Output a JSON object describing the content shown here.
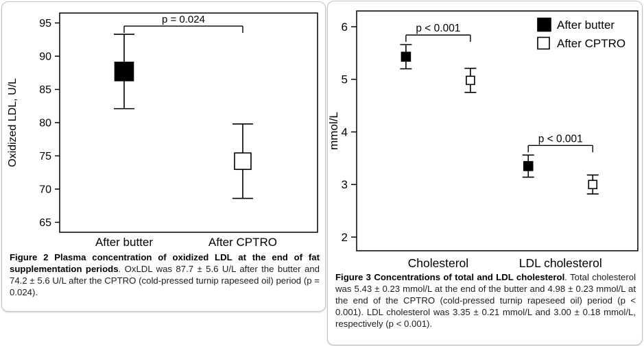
{
  "page": {
    "background": "#ffffff",
    "panel_border_color": "#c4c4c4",
    "ink_color": "#000000"
  },
  "figure2": {
    "caption_bold": "Figure 2 Plasma concentration of oxidized LDL at the end of fat supplementation periods",
    "caption_rest": ". OxLDL was 87.7 ± 5.6 U/L after the butter and 74.2 ± 5.6 U/L after the CPTRO (cold-pressed turnip rapeseed oil) period (p = 0.024)."
  },
  "figure3": {
    "caption_bold": "Figure 3 Concentrations of total and LDL cholesterol",
    "caption_rest": ". Total cholesterol was 5.43 ± 0.23 mmol/L at the end of the butter and 4.98 ± 0.23 mmol/L at the end of the CPTRO (cold-pressed turnip rapeseed oil) period (p < 0.001). LDL cholesterol was 3.35 ± 0.21 mmol/L and 3.00 ± 0.18 mmol/L, respectively (p < 0.001)."
  },
  "chart_data": [
    {
      "id": "figure2",
      "type": "scatter",
      "title": "",
      "xlabel": "",
      "ylabel": "Oxidized LDL, U/L",
      "ylim": [
        63.5,
        96.5
      ],
      "yticks": [
        65,
        70,
        75,
        80,
        85,
        90,
        95
      ],
      "grid": false,
      "categories": [
        "After butter",
        "After CPTRO"
      ],
      "points": [
        {
          "category": "After butter",
          "value": 87.7,
          "error": 5.6,
          "marker": "filled-square"
        },
        {
          "category": "After CPTRO",
          "value": 74.2,
          "error": 5.6,
          "marker": "open-square"
        }
      ],
      "annotations": [
        {
          "label": "p = 0.024"
        }
      ],
      "marker_colors": {
        "filled-square": "#000000",
        "open-square": "#ffffff"
      }
    },
    {
      "id": "figure3",
      "type": "scatter",
      "title": "",
      "xlabel": "",
      "ylabel": "mmol/L",
      "ylim": [
        1.74,
        6.3
      ],
      "yticks": [
        2,
        3,
        4,
        5,
        6
      ],
      "grid": false,
      "categories": [
        "Cholesterol",
        "LDL cholesterol"
      ],
      "series": [
        {
          "name": "After butter",
          "marker": "filled-square",
          "values": [
            5.43,
            3.35
          ],
          "errors": [
            0.23,
            0.21
          ]
        },
        {
          "name": "After CPTRO",
          "marker": "open-square",
          "values": [
            4.98,
            3.0
          ],
          "errors": [
            0.23,
            0.18
          ]
        }
      ],
      "annotations": [
        {
          "label": "p < 0.001",
          "category": "Cholesterol"
        },
        {
          "label": "p < 0.001",
          "category": "LDL cholesterol"
        }
      ],
      "legend": {
        "position": "top-right",
        "entries": [
          {
            "label": "After butter",
            "marker": "filled-square"
          },
          {
            "label": "After CPTRO",
            "marker": "open-square"
          }
        ]
      },
      "marker_colors": {
        "filled-square": "#000000",
        "open-square": "#ffffff"
      }
    }
  ]
}
